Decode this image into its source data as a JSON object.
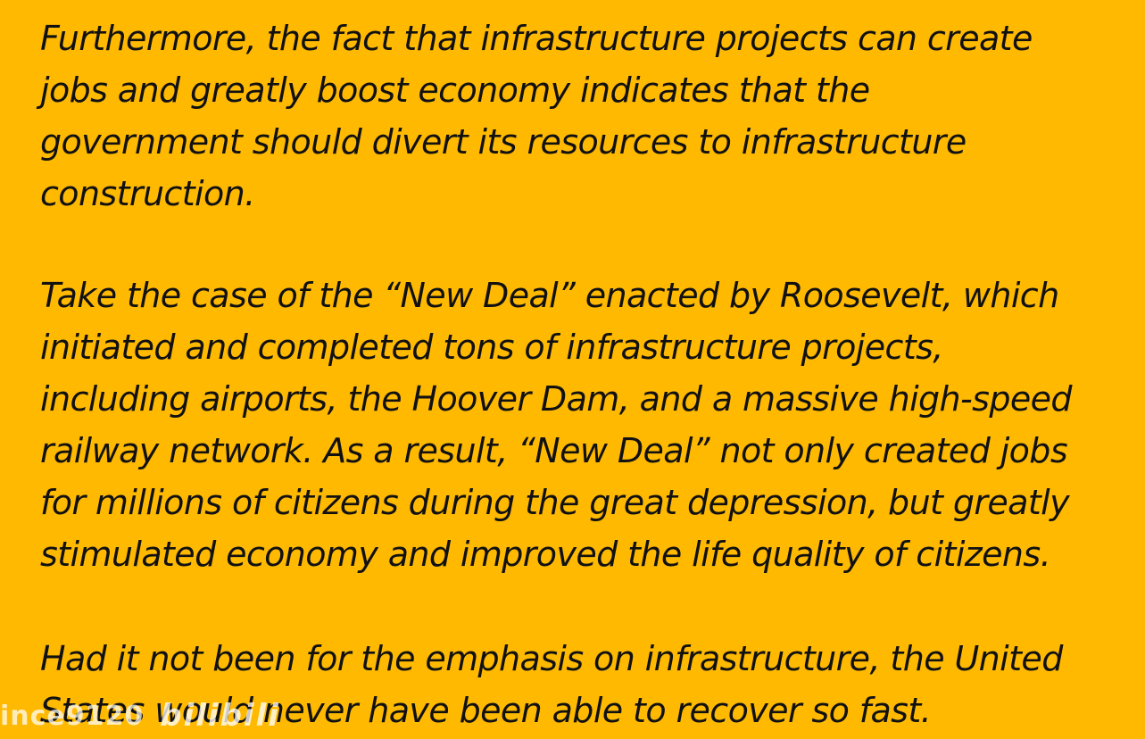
{
  "paragraphs": [
    "Furthermore, the fact that infrastructure projects can create\njobs and greatly boost economy indicates that the\ngovernment should divert its resources to infrastructure\nconstruction.",
    "Take the case of the “New Deal” enacted by Roosevelt, which\ninitiated and completed tons of infrastructure projects,\nincluding airports, the Hoover Dam, and a massive high-speed\nrailway network. As a result, “New Deal” not only created jobs\nfor millions of citizens during the great depression, but greatly\nstimulated economy and improved the life quality of citizens.",
    "Had it not been for the emphasis on infrastructure, the United\nStates would never have been able to recover so fast."
  ],
  "watermark": {
    "user": "ince9120",
    "logo": "bilibili"
  },
  "colors": {
    "background": "#FFB900",
    "text": "#111111"
  }
}
